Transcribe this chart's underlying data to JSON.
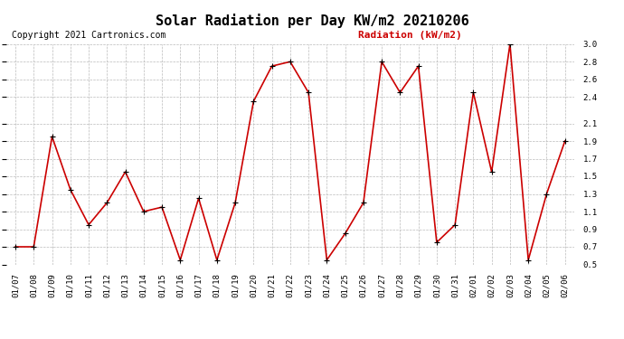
{
  "title": "Solar Radiation per Day KW/m2 20210206",
  "copyright": "Copyright 2021 Cartronics.com",
  "legend_label": "Radiation (kW/m2)",
  "dates": [
    "01/07",
    "01/08",
    "01/09",
    "01/10",
    "01/11",
    "01/12",
    "01/13",
    "01/14",
    "01/15",
    "01/16",
    "01/17",
    "01/18",
    "01/19",
    "01/20",
    "01/21",
    "01/22",
    "01/23",
    "01/24",
    "01/25",
    "01/26",
    "01/27",
    "01/28",
    "01/29",
    "01/30",
    "01/31",
    "02/01",
    "02/02",
    "02/03",
    "02/04",
    "02/05",
    "02/06"
  ],
  "values": [
    0.7,
    0.7,
    1.95,
    1.35,
    0.95,
    1.2,
    1.55,
    1.1,
    1.15,
    0.55,
    1.25,
    0.55,
    1.2,
    2.35,
    2.75,
    2.8,
    2.45,
    0.55,
    0.85,
    1.2,
    2.8,
    2.45,
    2.75,
    0.75,
    0.95,
    2.45,
    1.55,
    3.0,
    0.55,
    1.3,
    1.9
  ],
  "line_color": "#cc0000",
  "marker_color": "black",
  "marker_size": 5,
  "ylim": [
    0.5,
    3.0
  ],
  "yticks": [
    0.5,
    0.7,
    0.9,
    1.1,
    1.3,
    1.5,
    1.7,
    1.9,
    2.1,
    2.4,
    2.6,
    2.8,
    3.0
  ],
  "background_color": "#ffffff",
  "grid_color": "#bbbbbb",
  "title_fontsize": 11,
  "copyright_fontsize": 7,
  "legend_fontsize": 8,
  "tick_fontsize": 6.5,
  "line_width": 1.2
}
